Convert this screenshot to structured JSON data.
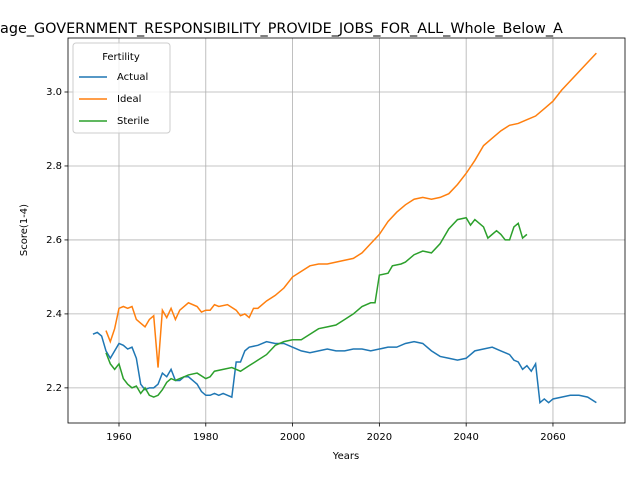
{
  "chart_data": {
    "type": "line",
    "title": "age_GOVERNMENT_RESPONSIBILITY_PROVIDE_JOBS_FOR_ALL_Whole_Below_A",
    "x_label": "Years",
    "y_label": "Score(1-4)",
    "xlim": [
      1948.25,
      2076.6
    ],
    "ylim": [
      2.105,
      3.146
    ],
    "xticks": [
      1960,
      1980,
      2000,
      2020,
      2040,
      2060
    ],
    "yticks": [
      2.2,
      2.4,
      2.6,
      2.8,
      {
        "value": 3,
        "label": "3.0"
      }
    ],
    "grid": true,
    "legend_title": "Fertility",
    "legend_position": "upper-left",
    "series": [
      {
        "name": "Actual",
        "color": "#1f77b4",
        "x": [
          1954,
          1955,
          1956,
          1957,
          1958,
          1959,
          1960,
          1961,
          1962,
          1963,
          1964,
          1965,
          1966,
          1967,
          1968,
          1969,
          1970,
          1971,
          1972,
          1973,
          1974,
          1975,
          1976,
          1977,
          1978,
          1979,
          1980,
          1981,
          1982,
          1983,
          1984,
          1985,
          1986,
          1987,
          1988,
          1989,
          1990,
          1992,
          1994,
          1996,
          1998,
          2000,
          2002,
          2004,
          2006,
          2008,
          2010,
          2012,
          2014,
          2016,
          2018,
          2020,
          2022,
          2024,
          2026,
          2028,
          2030,
          2032,
          2034,
          2036,
          2038,
          2040,
          2042,
          2044,
          2046,
          2048,
          2050,
          2051,
          2052,
          2053,
          2054,
          2055,
          2056,
          2057,
          2058,
          2059,
          2060,
          2062,
          2064,
          2066,
          2068,
          2070
        ],
        "values": [
          2.345,
          2.35,
          2.34,
          2.3,
          2.28,
          2.3,
          2.32,
          2.315,
          2.305,
          2.31,
          2.28,
          2.21,
          2.195,
          2.2,
          2.2,
          2.21,
          2.24,
          2.23,
          2.25,
          2.22,
          2.22,
          2.23,
          2.23,
          2.22,
          2.21,
          2.19,
          2.18,
          2.18,
          2.185,
          2.18,
          2.185,
          2.18,
          2.175,
          2.27,
          2.27,
          2.3,
          2.31,
          2.315,
          2.325,
          2.32,
          2.32,
          2.31,
          2.3,
          2.295,
          2.3,
          2.305,
          2.3,
          2.3,
          2.305,
          2.305,
          2.3,
          2.305,
          2.31,
          2.31,
          2.32,
          2.325,
          2.32,
          2.3,
          2.285,
          2.28,
          2.275,
          2.28,
          2.3,
          2.305,
          2.31,
          2.3,
          2.29,
          2.275,
          2.27,
          2.25,
          2.26,
          2.245,
          2.265,
          2.16,
          2.17,
          2.16,
          2.17,
          2.175,
          2.18,
          2.18,
          2.175,
          2.16
        ]
      },
      {
        "name": "Ideal",
        "color": "#ff7f0e",
        "x": [
          1957,
          1958,
          1959,
          1960,
          1961,
          1962,
          1963,
          1964,
          1965,
          1966,
          1967,
          1968,
          1969,
          1970,
          1971,
          1972,
          1973,
          1974,
          1976,
          1978,
          1979,
          1980,
          1981,
          1982,
          1983,
          1985,
          1987,
          1988,
          1989,
          1990,
          1991,
          1992,
          1994,
          1996,
          1998,
          2000,
          2002,
          2004,
          2006,
          2008,
          2010,
          2012,
          2014,
          2016,
          2018,
          2020,
          2022,
          2024,
          2026,
          2028,
          2030,
          2032,
          2034,
          2036,
          2038,
          2040,
          2042,
          2044,
          2046,
          2048,
          2050,
          2052,
          2054,
          2056,
          2058,
          2060,
          2062,
          2064,
          2066,
          2068,
          2070
        ],
        "values": [
          2.355,
          2.325,
          2.36,
          2.415,
          2.42,
          2.415,
          2.42,
          2.385,
          2.375,
          2.365,
          2.385,
          2.395,
          2.255,
          2.41,
          2.39,
          2.415,
          2.385,
          2.41,
          2.43,
          2.42,
          2.405,
          2.41,
          2.41,
          2.425,
          2.42,
          2.425,
          2.41,
          2.395,
          2.4,
          2.39,
          2.415,
          2.415,
          2.435,
          2.45,
          2.47,
          2.5,
          2.515,
          2.53,
          2.535,
          2.535,
          2.54,
          2.545,
          2.55,
          2.565,
          2.59,
          2.615,
          2.65,
          2.675,
          2.695,
          2.71,
          2.715,
          2.71,
          2.715,
          2.725,
          2.75,
          2.78,
          2.815,
          2.855,
          2.875,
          2.895,
          2.91,
          2.915,
          2.925,
          2.935,
          2.955,
          2.975,
          3.005,
          3.03,
          3.055,
          3.08,
          3.105
        ]
      },
      {
        "name": "Sterile",
        "color": "#2ca02c",
        "x": [
          1957,
          1958,
          1959,
          1960,
          1961,
          1962,
          1963,
          1964,
          1965,
          1966,
          1967,
          1968,
          1969,
          1970,
          1971,
          1972,
          1973,
          1974,
          1975,
          1976,
          1978,
          1980,
          1981,
          1982,
          1984,
          1986,
          1988,
          1990,
          1992,
          1994,
          1996,
          1998,
          2000,
          2002,
          2004,
          2006,
          2008,
          2010,
          2012,
          2014,
          2016,
          2018,
          2019,
          2020,
          2022,
          2023,
          2025,
          2026,
          2028,
          2030,
          2032,
          2034,
          2036,
          2038,
          2040,
          2041,
          2042,
          2044,
          2045,
          2046,
          2047,
          2048,
          2049,
          2050,
          2051,
          2052,
          2053,
          2054
        ],
        "values": [
          2.295,
          2.265,
          2.25,
          2.265,
          2.225,
          2.21,
          2.2,
          2.205,
          2.185,
          2.2,
          2.18,
          2.175,
          2.18,
          2.195,
          2.215,
          2.225,
          2.22,
          2.225,
          2.23,
          2.235,
          2.24,
          2.225,
          2.23,
          2.245,
          2.25,
          2.255,
          2.245,
          2.26,
          2.275,
          2.29,
          2.315,
          2.325,
          2.33,
          2.33,
          2.345,
          2.36,
          2.365,
          2.37,
          2.385,
          2.4,
          2.42,
          2.43,
          2.43,
          2.505,
          2.51,
          2.53,
          2.535,
          2.54,
          2.56,
          2.57,
          2.565,
          2.59,
          2.63,
          2.655,
          2.66,
          2.64,
          2.655,
          2.635,
          2.605,
          2.615,
          2.625,
          2.615,
          2.6,
          2.6,
          2.635,
          2.645,
          2.605,
          2.615
        ]
      }
    ]
  }
}
